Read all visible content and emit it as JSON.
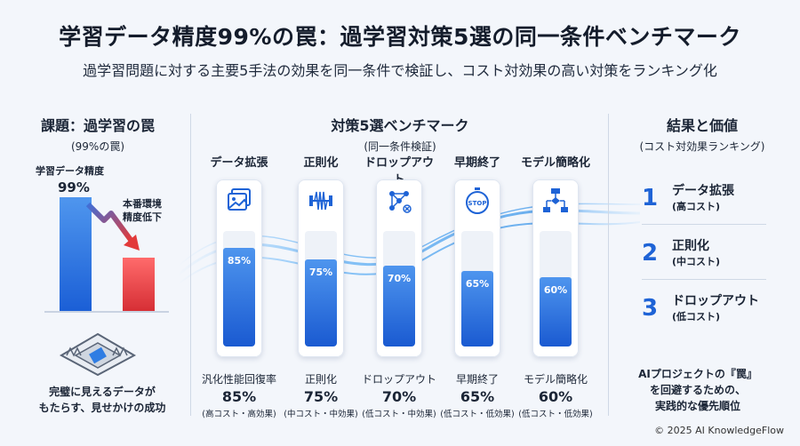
{
  "title": "学習データ精度99%の罠：過学習対策5選の同一条件ベンチマーク",
  "subtitle": "過学習問題に対する主要5手法の効果を同一条件で検証し、コスト対効果の高い対策をランキング化",
  "left": {
    "heading": "課題：過学習の罠",
    "subheading": "(99%の罠)",
    "accuracy_label": "学習データ精度",
    "accuracy_value": "99%",
    "drop_label_line1": "本番環境",
    "drop_label_line2": "精度低下",
    "caption_line1": "完璧に見えるデータが",
    "caption_line2": "もたらす、見せかけの成功"
  },
  "center": {
    "heading": "対策5選ベンチマーク",
    "subheading": "(同一条件検証)",
    "methods": [
      {
        "name": "データ拡張",
        "icon": "image-stack-icon",
        "value": 85,
        "pct": "85%",
        "bottom_label": "汎化性能回復率",
        "bottom_value": "85%",
        "bottom_cost": "(高コスト・高効果)"
      },
      {
        "name": "正則化",
        "icon": "spring-weight-icon",
        "value": 75,
        "pct": "75%",
        "bottom_label": "正則化",
        "bottom_value": "75%",
        "bottom_cost": "(中コスト・中効果)"
      },
      {
        "name": "ドロップアウト",
        "icon": "neural-network-icon",
        "value": 70,
        "pct": "70%",
        "bottom_label": "ドロップアウト",
        "bottom_value": "70%",
        "bottom_cost": "(低コスト・中効果)"
      },
      {
        "name": "早期終了",
        "icon": "stopwatch-stop-icon",
        "value": 65,
        "pct": "65%",
        "bottom_label": "早期終了",
        "bottom_value": "65%",
        "bottom_cost": "(低コスト・低効果)"
      },
      {
        "name": "モデル簡略化",
        "icon": "flowchart-icon",
        "value": 60,
        "pct": "60%",
        "bottom_label": "モデル簡略化",
        "bottom_value": "60%",
        "bottom_cost": "(低コスト・低効果)"
      }
    ],
    "stop_text": "STOP"
  },
  "right": {
    "heading": "結果と価値",
    "subheading": "(コスト対効果ランキング)",
    "ranking": [
      {
        "rank": "1",
        "name": "データ拡張",
        "cost": "(高コスト)"
      },
      {
        "rank": "2",
        "name": "正則化",
        "cost": "(中コスト)"
      },
      {
        "rank": "3",
        "name": "ドロップアウト",
        "cost": "(低コスト)"
      }
    ],
    "caption_line1": "AIプロジェクトの『罠』",
    "caption_line2": "を回避するための、",
    "caption_line3": "実践的な優先順位"
  },
  "copyright": "© 2025 AI KnowledgeFlow",
  "colors": {
    "accent": "#1e63d6",
    "bar_top": "#4e95ee",
    "bar_bottom": "#1a5ad1",
    "drop": "#d62f35",
    "background": "#f3f6fb"
  }
}
